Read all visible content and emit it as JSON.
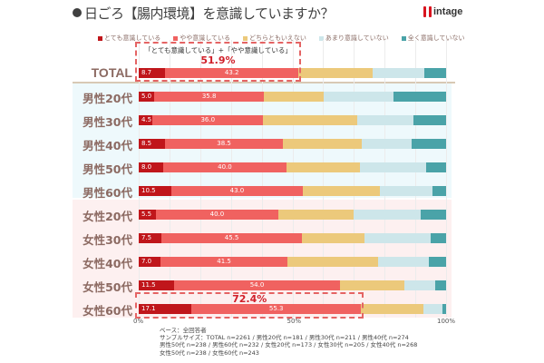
{
  "header": {
    "title": "日ごろ【腸内環境】を意識していますか？",
    "logo_text": "intage"
  },
  "chart_data": {
    "type": "bar",
    "orientation": "horizontal",
    "stacked": true,
    "percent": true,
    "title": "日ごろ【腸内環境】を意識していますか？",
    "xlim": [
      0,
      100
    ],
    "x_ticks": [
      "0%",
      "50%",
      "100%"
    ],
    "legend_position": "top",
    "categories": [
      "TOTAL",
      "男性20代",
      "男性30代",
      "男性40代",
      "男性50代",
      "男性60代",
      "女性20代",
      "女性30代",
      "女性40代",
      "女性50代",
      "女性60代"
    ],
    "series": [
      {
        "name": "とても意識している",
        "color": "#c0161b",
        "labeled": true,
        "values": [
          8.7,
          5.0,
          4.5,
          8.5,
          8.0,
          10.5,
          5.5,
          7.5,
          7.0,
          11.5,
          17.1
        ]
      },
      {
        "name": "やや意識している",
        "color": "#f06260",
        "labeled": true,
        "values": [
          43.2,
          35.8,
          36.0,
          38.5,
          40.0,
          43.0,
          40.0,
          45.5,
          41.5,
          54.0,
          55.3
        ]
      },
      {
        "name": "どちらともいえない",
        "color": "#ecc97b",
        "labeled": false,
        "values": [
          24.1,
          19.3,
          30.6,
          25.5,
          23.9,
          24.9,
          24.4,
          20.4,
          29.4,
          20.9,
          20.1
        ]
      },
      {
        "name": "あまり意識していない",
        "color": "#cde6ea",
        "labeled": false,
        "values": [
          17.0,
          22.9,
          18.3,
          16.4,
          21.6,
          17.1,
          21.9,
          21.6,
          16.5,
          10.1,
          6.4
        ]
      },
      {
        "name": "全く意識していない",
        "color": "#4aa3a8",
        "labeled": false,
        "values": [
          7.0,
          17.0,
          10.6,
          11.1,
          6.5,
          4.5,
          8.2,
          5.0,
          5.6,
          3.5,
          1.1
        ]
      }
    ],
    "annotations": [
      {
        "target": "TOTAL",
        "caption": "「とても意識している」+「やや意識している」",
        "value": "51.9%"
      },
      {
        "target": "女性60代",
        "caption": "",
        "value": "72.4%"
      }
    ]
  },
  "footnote": {
    "lines": [
      "ベース：全回答者",
      "サンプルサイズ：TOTAL n=2261 / 男性20代 n=181 / 男性30代 n=211 / 男性40代 n=274",
      "男性50代 n=238 / 男性60代 n=232 / 女性20代 n=173 / 女性30代 n=205 / 女性40代 n=268",
      "女性50代 n=238 / 女性60代 n=243"
    ]
  }
}
